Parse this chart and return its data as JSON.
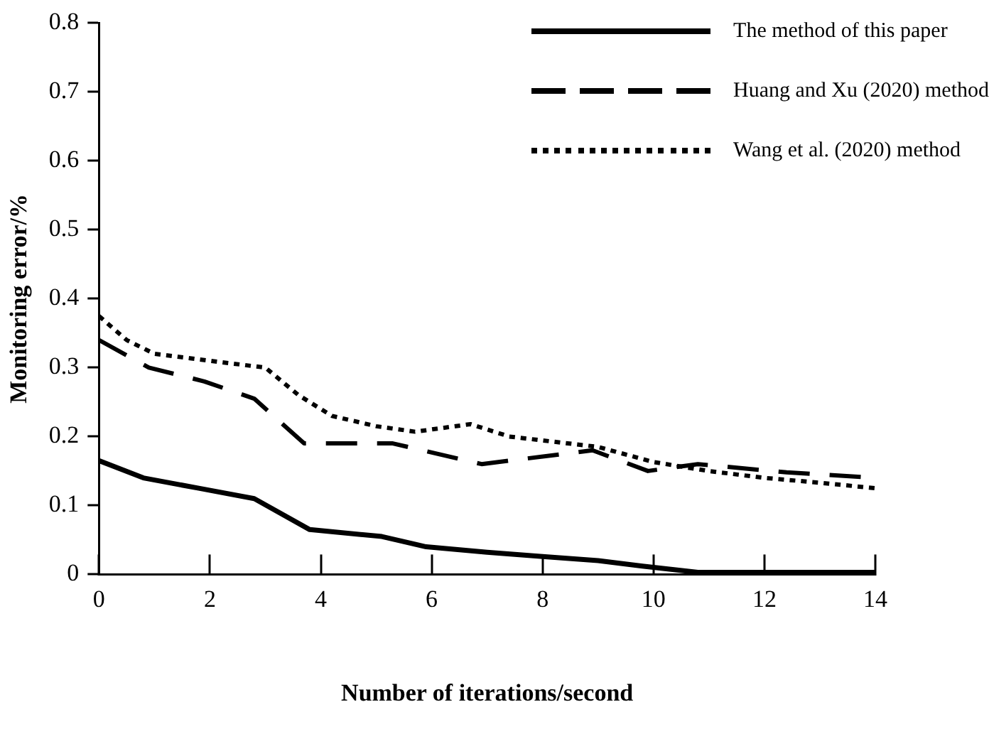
{
  "chart_data": {
    "type": "line",
    "xlabel": "Number of iterations/second",
    "ylabel": "Monitoring error/%",
    "xlim": [
      0,
      14
    ],
    "xticks": [
      0,
      2,
      4,
      6,
      8,
      10,
      12,
      14
    ],
    "ylim": [
      0,
      0.8
    ],
    "yticks": [
      0,
      0.1,
      0.2,
      0.3,
      0.4,
      0.5,
      0.6,
      0.7,
      0.8
    ],
    "grid": false,
    "legend": "top right",
    "marker": "none",
    "series": [
      {
        "name": "The method of this paper",
        "color": "#000000",
        "line_style": "solid",
        "x": [
          0,
          0.8,
          1.8,
          2.8,
          3.8,
          5.1,
          5.9,
          7,
          8,
          9,
          9.8,
          10.8,
          12,
          14
        ],
        "values": [
          0.165,
          0.14,
          0.125,
          0.11,
          0.065,
          0.055,
          0.04,
          0.032,
          0.026,
          0.02,
          0.012,
          0.003,
          0.003,
          0.003
        ]
      },
      {
        "name": "Huang and Xu (2020) method",
        "color": "#000000",
        "line_style": "dashed",
        "x": [
          0,
          0.9,
          1.9,
          2.8,
          3.7,
          5.3,
          6.9,
          8.9,
          9.9,
          10.8,
          12.4,
          14
        ],
        "values": [
          0.34,
          0.3,
          0.28,
          0.255,
          0.19,
          0.19,
          0.16,
          0.18,
          0.15,
          0.16,
          0.148,
          0.14
        ]
      },
      {
        "name": "Wang et al. (2020) method",
        "color": "#000000",
        "line_style": "dotted",
        "x": [
          0,
          0.5,
          1,
          2,
          3,
          3.6,
          4.2,
          5,
          5.7,
          6.7,
          7.4,
          9,
          10,
          11,
          12,
          13,
          14
        ],
        "values": [
          0.375,
          0.34,
          0.32,
          0.31,
          0.3,
          0.26,
          0.23,
          0.215,
          0.207,
          0.218,
          0.2,
          0.185,
          0.163,
          0.15,
          0.14,
          0.133,
          0.125
        ]
      }
    ]
  }
}
